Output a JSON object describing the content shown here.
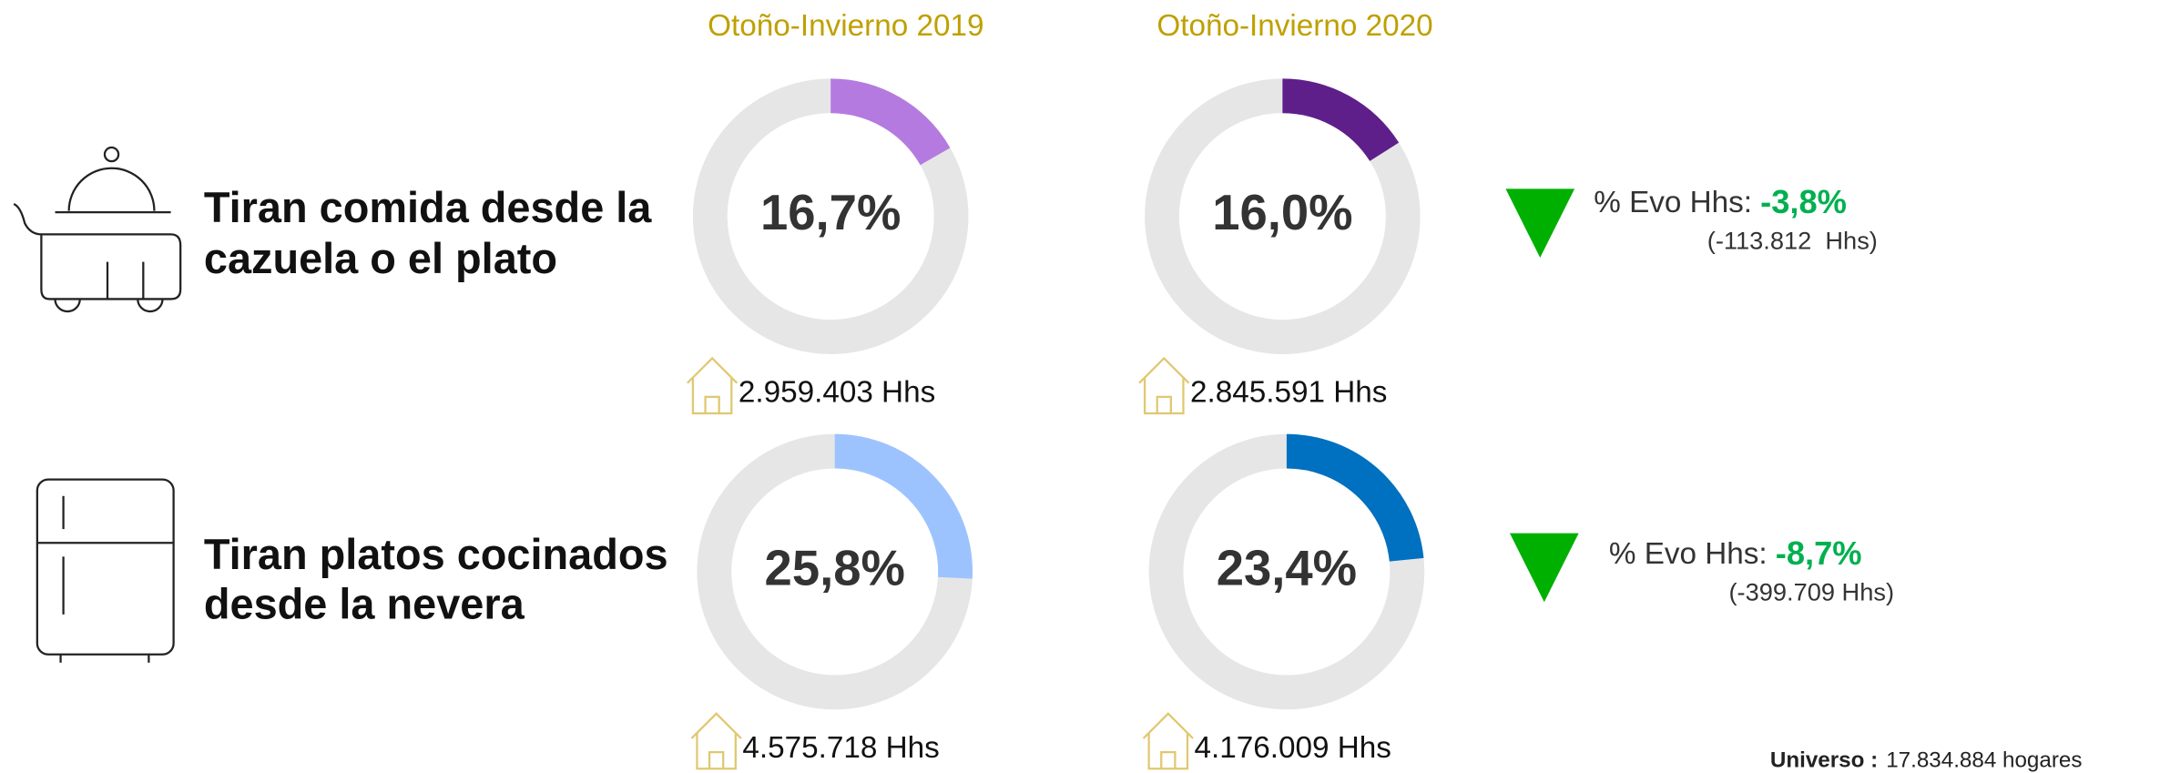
{
  "columns": [
    "Otoño-Invierno 2019",
    "Otoño-Invierno 2020"
  ],
  "rows": [
    {
      "label": [
        "Tiran comida desde la",
        "cazuela o el plato"
      ],
      "evo": {
        "label": "% Evo Hhs:",
        "value": "-3,8%",
        "detail": "(-113.812  Hhs)"
      }
    },
    {
      "label": [
        "Tiran platos cocinados",
        "desde la nevera"
      ],
      "evo": {
        "label": "% Evo Hhs:",
        "value": "-8,7%",
        "detail": "(-399.709 Hhs)"
      }
    }
  ],
  "chart_data": [
    {
      "type": "donut",
      "values": [
        16.7
      ],
      "value_labels": [
        "16,7%"
      ],
      "color": "#b57ae0",
      "annotation": "2.959.403 Hhs"
    },
    {
      "type": "donut",
      "values": [
        16.0
      ],
      "value_labels": [
        "16,0%"
      ],
      "color": "#5f1f8a",
      "annotation": "2.845.591 Hhs"
    },
    {
      "type": "donut",
      "values": [
        25.8
      ],
      "value_labels": [
        "25,8%"
      ],
      "color": "#9dc3ff",
      "annotation": "4.575.718 Hhs"
    },
    {
      "type": "donut",
      "values": [
        23.4
      ],
      "value_labels": [
        "23,4%"
      ],
      "color": "#0070c0",
      "annotation": "4.176.009 Hhs"
    }
  ],
  "universe": {
    "label": "Universo :",
    "value": "17.834.884 hogares"
  }
}
